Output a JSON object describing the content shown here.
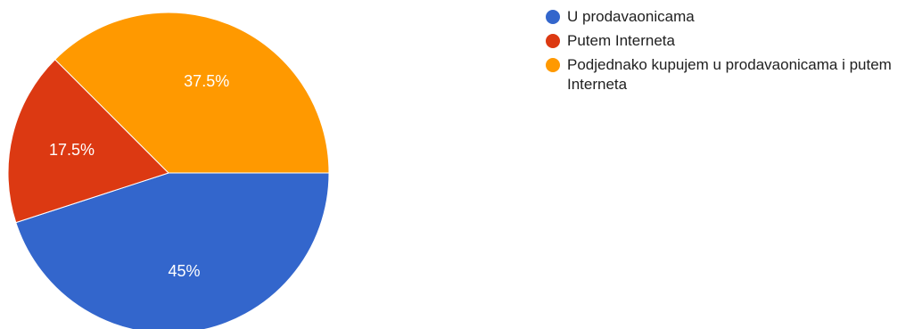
{
  "chart_data": {
    "type": "pie",
    "title": "",
    "legend_position": "right",
    "slices": [
      {
        "label": "U prodavaonicama",
        "value": 45,
        "display": "45%",
        "color": "#3366cc"
      },
      {
        "label": "Putem Interneta",
        "value": 17.5,
        "display": "17.5%",
        "color": "#dc3912"
      },
      {
        "label": "Podjednako kupujem u prodavaonicama i putem Interneta",
        "value": 37.5,
        "display": "37.5%",
        "color": "#ff9900"
      }
    ]
  }
}
